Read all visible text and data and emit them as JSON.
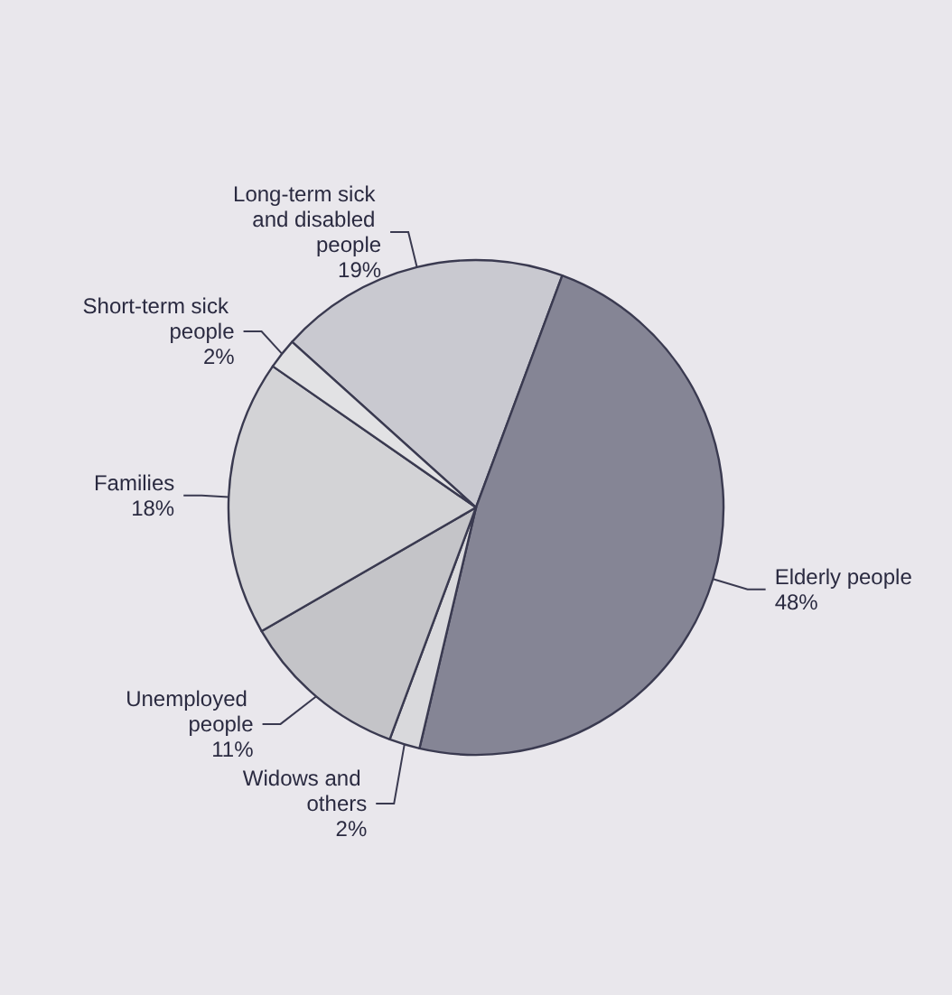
{
  "chart_data": {
    "type": "pie",
    "categories": [
      "Long-term sick and disabled people",
      "Elderly people",
      "Widows and others",
      "Unemployed people",
      "Families",
      "Short-term sick people"
    ],
    "values": [
      19,
      48,
      2,
      11,
      18,
      2
    ],
    "value_labels": [
      "19%",
      "48%",
      "2%",
      "11%",
      "18%",
      "2%"
    ],
    "colors": [
      "#c9c9d0",
      "#858595",
      "#d9d9dc",
      "#c4c4c8",
      "#d3d3d6",
      "#e2e2e4"
    ]
  }
}
